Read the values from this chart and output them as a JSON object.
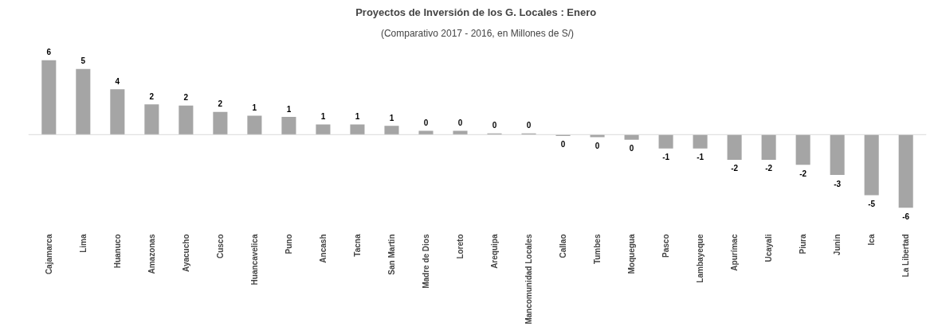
{
  "chart_data": {
    "type": "bar",
    "title": "Proyectos de Inversión de los G.  Locales : Enero",
    "subtitle": "(Comparativo 2017 - 2016, en Millones de S/)",
    "categories": [
      "Cajamarca",
      "Lima",
      "Huanuco",
      "Amazonas",
      "Ayacucho",
      "Cusco",
      "Huancavelica",
      "Puno",
      "Ancash",
      "Tacna",
      "San Martin",
      "Madre de Dios",
      "Loreto",
      "Arequipa",
      "Mancomunidad Locales",
      "Callao",
      "Tumbes",
      "Moquegua",
      "Pasco",
      "Lambayeque",
      "Apurímac",
      "Ucayali",
      "Piura",
      "Junin",
      "Ica",
      "La Libertad"
    ],
    "values": [
      5.9,
      5.2,
      3.6,
      2.4,
      2.3,
      1.8,
      1.5,
      1.4,
      0.8,
      0.8,
      0.7,
      0.3,
      0.3,
      0.1,
      0.1,
      -0.1,
      -0.2,
      -0.4,
      -1.1,
      -1.1,
      -2.0,
      -2.0,
      -2.4,
      -3.2,
      -4.8,
      -5.8
    ],
    "value_labels": [
      "6",
      "5",
      "4",
      "2",
      "2",
      "2",
      "1",
      "1",
      "1",
      "1",
      "1",
      "0",
      "0",
      "0",
      "0",
      "0",
      "0",
      "0",
      "-1",
      "-1",
      "-2",
      "-2",
      "-2",
      "-3",
      "-5",
      "-6"
    ],
    "color": "#a5a5a5",
    "tick_labels": "x",
    "grid": false
  }
}
